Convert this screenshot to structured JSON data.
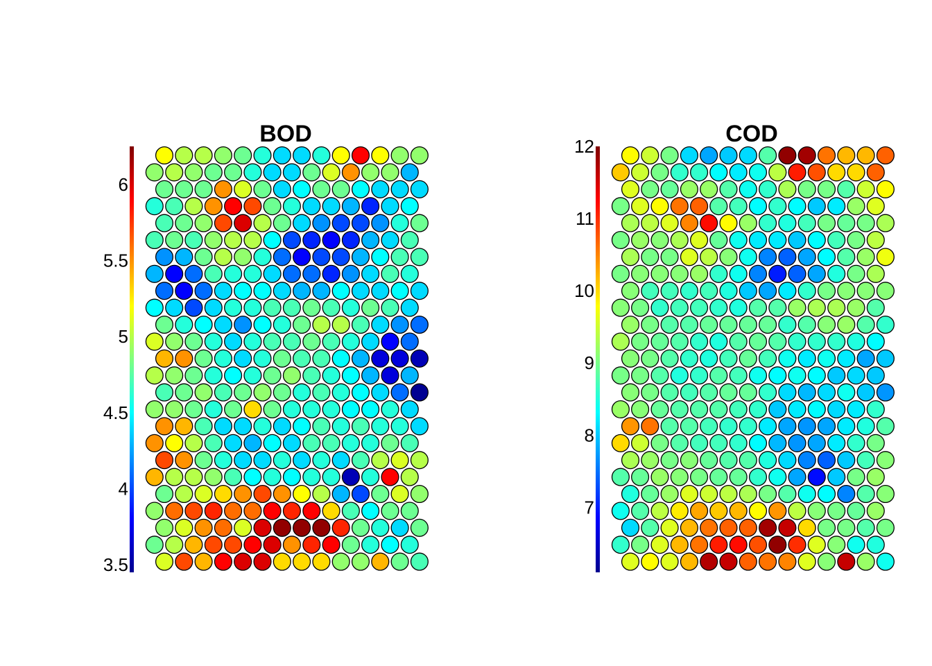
{
  "chart_data": [
    {
      "type": "heatmap",
      "title": "BOD",
      "layout": "hexagonal",
      "colormap": "jet",
      "grid": false,
      "legend": "colorbar-left",
      "rows": 25,
      "cols": 14,
      "colorbar": {
        "min": 3.45,
        "max": 6.25,
        "ticks": [
          3.5,
          4,
          4.5,
          5,
          5.5,
          6
        ],
        "tick_labels": [
          "3.5",
          "4",
          "4.5",
          "5",
          "5.5",
          "6"
        ]
      },
      "values": [
        [
          5.2,
          5.0,
          5.0,
          4.9,
          4.8,
          4.6,
          4.4,
          4.4,
          4.6,
          5.2,
          5.9,
          5.2,
          4.9,
          4.9
        ],
        [
          4.9,
          5.0,
          4.9,
          4.8,
          4.8,
          4.6,
          4.4,
          4.4,
          4.8,
          5.1,
          5.5,
          4.9,
          4.9,
          4.3
        ],
        [
          4.8,
          4.8,
          4.8,
          5.5,
          5.1,
          4.8,
          4.4,
          4.5,
          4.8,
          4.8,
          4.5,
          4.4,
          4.4,
          4.4
        ],
        [
          4.6,
          4.7,
          5.0,
          5.5,
          5.9,
          5.7,
          4.8,
          4.6,
          4.4,
          4.4,
          4.3,
          3.9,
          4.4,
          4.5
        ],
        [
          4.7,
          4.8,
          4.9,
          5.7,
          6.0,
          5.0,
          4.8,
          4.4,
          4.2,
          4.0,
          4.0,
          4.2,
          4.6,
          4.8
        ],
        [
          4.7,
          4.8,
          4.7,
          4.9,
          5.0,
          5.0,
          4.5,
          4.0,
          3.9,
          3.8,
          3.9,
          4.3,
          4.4,
          4.7
        ],
        [
          4.2,
          4.3,
          4.8,
          5.0,
          4.9,
          4.6,
          4.1,
          3.8,
          4.0,
          4.0,
          4.3,
          4.5,
          4.7,
          4.7
        ],
        [
          4.3,
          3.8,
          4.1,
          4.7,
          4.6,
          4.6,
          4.4,
          4.1,
          4.1,
          3.9,
          4.2,
          4.4,
          4.7,
          4.6
        ],
        [
          4.1,
          3.8,
          4.1,
          4.4,
          4.5,
          4.5,
          4.4,
          4.3,
          4.3,
          4.5,
          4.4,
          4.4,
          4.5,
          4.4
        ],
        [
          4.5,
          4.4,
          4.0,
          4.4,
          4.6,
          4.6,
          4.7,
          4.7,
          4.8,
          4.7,
          4.6,
          4.8,
          4.7,
          4.4
        ],
        [
          4.8,
          4.6,
          4.5,
          4.4,
          4.2,
          4.5,
          4.6,
          4.8,
          5.0,
          5.0,
          4.7,
          4.4,
          4.2,
          4.1
        ],
        [
          5.1,
          4.9,
          4.8,
          4.6,
          4.4,
          4.6,
          4.7,
          4.7,
          4.8,
          4.7,
          4.6,
          4.4,
          3.8,
          4.1
        ],
        [
          5.4,
          5.5,
          4.8,
          4.6,
          4.4,
          4.6,
          4.8,
          4.7,
          4.7,
          4.5,
          4.3,
          3.7,
          3.7,
          3.6
        ],
        [
          5.0,
          4.9,
          4.8,
          4.6,
          4.5,
          4.6,
          4.8,
          4.9,
          4.7,
          4.6,
          4.5,
          4.3,
          3.7,
          4.3
        ],
        [
          4.7,
          4.8,
          4.9,
          4.7,
          4.8,
          4.9,
          4.8,
          4.6,
          4.7,
          4.6,
          4.5,
          4.4,
          4.1,
          3.5
        ],
        [
          4.9,
          4.9,
          4.8,
          4.6,
          4.8,
          5.3,
          4.8,
          4.6,
          4.6,
          4.6,
          4.5,
          4.5,
          4.6,
          4.4
        ],
        [
          5.5,
          5.4,
          4.7,
          4.4,
          4.4,
          4.6,
          4.4,
          4.5,
          4.7,
          4.6,
          4.7,
          4.6,
          4.6,
          4.4
        ],
        [
          5.5,
          5.2,
          5.0,
          4.7,
          4.4,
          4.3,
          4.5,
          4.4,
          4.7,
          4.7,
          4.6,
          4.6,
          4.8,
          4.7
        ],
        [
          5.7,
          5.5,
          4.8,
          4.6,
          4.4,
          4.4,
          4.6,
          4.4,
          4.6,
          4.4,
          4.7,
          5.0,
          5.1,
          5.0
        ],
        [
          5.4,
          5.0,
          5.0,
          4.9,
          4.7,
          4.5,
          4.6,
          4.5,
          4.6,
          4.6,
          3.6,
          4.6,
          5.9,
          5.0
        ],
        [
          4.8,
          5.0,
          5.1,
          5.3,
          5.5,
          5.7,
          5.5,
          5.2,
          5.0,
          4.3,
          4.0,
          4.8,
          5.1,
          4.9
        ],
        [
          4.9,
          5.6,
          5.7,
          5.8,
          5.6,
          5.6,
          5.9,
          5.8,
          5.9,
          5.3,
          4.7,
          4.5,
          4.8,
          4.8
        ],
        [
          4.9,
          5.1,
          5.5,
          5.6,
          5.1,
          6.0,
          6.2,
          6.2,
          6.2,
          5.8,
          4.8,
          4.6,
          4.4,
          4.8
        ],
        [
          4.8,
          5.0,
          5.4,
          5.7,
          5.7,
          5.9,
          6.0,
          5.5,
          5.8,
          5.9,
          4.8,
          4.6,
          4.5,
          4.6
        ],
        [
          5.1,
          5.7,
          5.4,
          5.9,
          6.0,
          6.0,
          5.3,
          5.3,
          5.3,
          4.9,
          4.9,
          5.4,
          4.8,
          4.7
        ]
      ]
    },
    {
      "type": "heatmap",
      "title": "COD",
      "layout": "hexagonal",
      "colormap": "jet",
      "grid": false,
      "legend": "colorbar-left",
      "rows": 25,
      "cols": 14,
      "colorbar": {
        "min": 6.1,
        "max": 12.0,
        "ticks": [
          7,
          8,
          9,
          10,
          11,
          12
        ],
        "tick_labels": [
          "7",
          "8",
          "9",
          "10",
          "11",
          "12"
        ]
      },
      "values": [
        [
          9.8,
          9.5,
          9.0,
          8.1,
          7.8,
          8.0,
          8.1,
          8.8,
          11.9,
          11.8,
          10.6,
          10.2,
          10.2,
          10.7
        ],
        [
          10.1,
          9.5,
          9.0,
          8.6,
          8.6,
          8.3,
          8.2,
          8.4,
          9.4,
          11.1,
          10.8,
          10.0,
          10.0,
          10.7
        ],
        [
          9.6,
          9.0,
          8.9,
          9.2,
          9.2,
          8.8,
          8.4,
          8.6,
          9.3,
          9.0,
          9.0,
          8.8,
          9.5,
          9.8
        ],
        [
          9.0,
          9.6,
          9.8,
          10.6,
          10.7,
          8.8,
          8.7,
          8.3,
          8.6,
          8.3,
          8.0,
          8.2,
          9.2,
          9.6
        ],
        [
          9.3,
          9.4,
          9.6,
          10.5,
          11.2,
          9.8,
          9.2,
          8.6,
          8.5,
          8.7,
          9.0,
          8.9,
          9.0,
          9.3
        ],
        [
          9.0,
          9.2,
          9.1,
          9.3,
          9.6,
          8.9,
          8.4,
          8.2,
          8.2,
          8.0,
          8.3,
          8.7,
          9.0,
          9.4
        ],
        [
          9.3,
          9.0,
          9.0,
          9.6,
          9.4,
          9.1,
          8.4,
          7.6,
          7.4,
          7.8,
          8.3,
          8.8,
          9.2,
          9.7
        ],
        [
          9.0,
          9.1,
          9.1,
          9.1,
          9.2,
          8.6,
          8.4,
          7.6,
          7.0,
          7.4,
          7.8,
          8.5,
          9.0,
          9.3
        ],
        [
          9.1,
          8.7,
          8.7,
          8.6,
          8.7,
          8.5,
          8.0,
          7.8,
          8.2,
          8.6,
          9.0,
          9.1,
          9.1,
          9.1
        ],
        [
          9.1,
          9.0,
          8.6,
          8.7,
          8.7,
          8.6,
          8.5,
          8.8,
          8.8,
          9.2,
          9.3,
          9.3,
          9.2,
          8.8
        ],
        [
          9.2,
          9.0,
          8.8,
          8.8,
          8.9,
          8.9,
          8.9,
          8.9,
          8.6,
          8.8,
          9.1,
          9.2,
          8.8,
          8.6
        ],
        [
          9.3,
          9.0,
          8.9,
          8.8,
          8.6,
          8.5,
          8.8,
          8.9,
          8.8,
          8.6,
          8.6,
          8.6,
          8.5,
          8.3
        ],
        [
          9.1,
          9.0,
          8.8,
          8.6,
          8.5,
          8.7,
          8.9,
          8.7,
          8.4,
          8.2,
          8.4,
          8.2,
          7.8,
          8.0
        ],
        [
          9.0,
          9.0,
          8.8,
          8.5,
          8.6,
          8.8,
          8.7,
          8.4,
          8.3,
          8.4,
          8.3,
          8.0,
          8.1,
          8.0
        ],
        [
          9.1,
          9.0,
          8.8,
          8.7,
          8.8,
          8.9,
          8.9,
          8.6,
          8.1,
          7.9,
          8.1,
          8.4,
          8.0,
          7.7
        ],
        [
          9.2,
          9.1,
          8.9,
          8.8,
          8.8,
          8.8,
          8.7,
          8.6,
          8.0,
          8.2,
          8.3,
          8.1,
          8.2,
          8.6
        ],
        [
          10.4,
          10.6,
          8.8,
          8.8,
          8.7,
          8.6,
          8.6,
          8.2,
          7.8,
          7.7,
          7.8,
          8.2,
          8.5,
          8.8
        ],
        [
          10.0,
          9.5,
          9.0,
          8.8,
          8.7,
          8.7,
          8.6,
          8.3,
          7.9,
          7.7,
          7.8,
          8.2,
          8.6,
          9.0
        ],
        [
          9.3,
          9.2,
          9.0,
          9.1,
          8.9,
          8.8,
          8.8,
          8.5,
          8.1,
          7.6,
          7.4,
          8.0,
          8.7,
          9.1
        ],
        [
          8.8,
          8.9,
          9.2,
          9.1,
          9.0,
          8.9,
          8.9,
          8.6,
          8.4,
          7.8,
          6.9,
          8.0,
          9.0,
          9.2
        ],
        [
          8.5,
          8.9,
          9.2,
          9.6,
          9.5,
          9.4,
          9.3,
          9.0,
          8.8,
          8.4,
          8.3,
          7.6,
          8.8,
          9.1
        ],
        [
          8.4,
          8.8,
          9.4,
          9.9,
          10.3,
          10.1,
          10.2,
          9.8,
          10.4,
          9.4,
          9.1,
          9.0,
          8.9,
          9.2
        ],
        [
          8.1,
          8.8,
          9.6,
          10.2,
          10.6,
          10.7,
          10.7,
          11.8,
          11.6,
          10.0,
          9.0,
          9.0,
          8.8,
          9.0
        ],
        [
          8.6,
          9.0,
          9.6,
          10.2,
          10.6,
          11.1,
          11.2,
          10.8,
          11.9,
          11.0,
          9.6,
          9.1,
          8.4,
          8.5
        ],
        [
          9.6,
          9.8,
          9.6,
          10.2,
          11.7,
          11.6,
          10.7,
          10.6,
          10.5,
          9.6,
          9.1,
          11.6,
          9.2,
          8.4
        ]
      ]
    }
  ]
}
